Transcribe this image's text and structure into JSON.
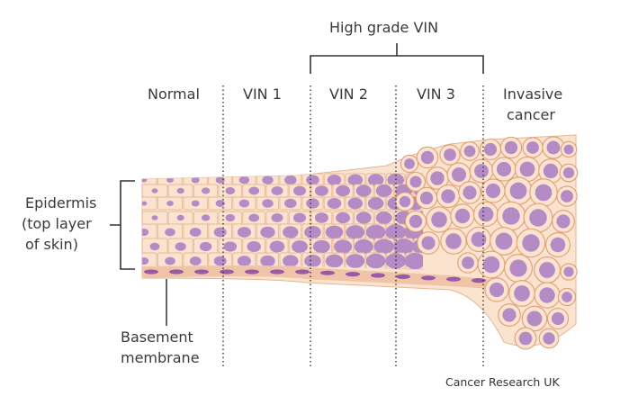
{
  "title": "",
  "group_label": "High grade VIN",
  "stages": [
    {
      "name": "normal",
      "label": "Normal"
    },
    {
      "name": "vin-1",
      "label": "VIN 1"
    },
    {
      "name": "vin-2",
      "label": "VIN 2"
    },
    {
      "name": "vin-3",
      "label": "VIN 3"
    },
    {
      "name": "invasive-cancer",
      "label_line1": "Invasive",
      "label_line2": "cancer"
    }
  ],
  "labels": {
    "epidermis_line1": "Epidermis",
    "epidermis_line2": "(top layer",
    "epidermis_line3": "of skin)",
    "basement_line1": "Basement",
    "basement_line2": "membrane"
  },
  "credit": "Cancer Research UK",
  "colors": {
    "tissue_fill": "#fbe4cf",
    "cell_outline": "#e9b797",
    "cancer_outline": "#e09d77",
    "nucleus": "#b48bc5",
    "membrane": "#f0c4a8",
    "membrane_nucleus": "#9a5aa6",
    "lines": "#333333"
  }
}
